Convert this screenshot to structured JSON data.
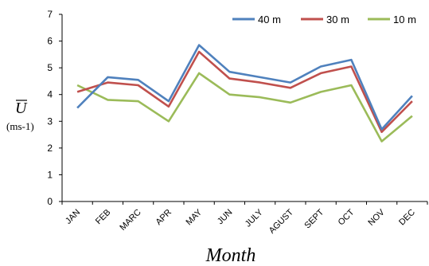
{
  "chart_data": {
    "type": "line",
    "title": "",
    "xlabel": "Month",
    "ylabel": "U",
    "ylabel_unit": "(ms-1)",
    "ylim": [
      0,
      7
    ],
    "yticks": [
      0,
      1,
      2,
      3,
      4,
      5,
      6,
      7
    ],
    "grid": false,
    "legend_position": "top-right",
    "categories": [
      "JAN",
      "FEB",
      "MARC",
      "APR",
      "MAY",
      "JUN",
      "JULY",
      "AGUST",
      "SEPT",
      "OCT",
      "NOV",
      "DEC"
    ],
    "series": [
      {
        "name": "40 m",
        "color": "#4f81bd",
        "values": [
          3.5,
          4.65,
          4.55,
          3.75,
          5.85,
          4.85,
          4.65,
          4.45,
          5.05,
          5.3,
          2.7,
          3.95
        ]
      },
      {
        "name": "30 m",
        "color": "#c0504d",
        "values": [
          4.1,
          4.45,
          4.35,
          3.55,
          5.6,
          4.6,
          4.45,
          4.25,
          4.8,
          5.05,
          2.6,
          3.75
        ]
      },
      {
        "name": "10 m",
        "color": "#9bbb59",
        "values": [
          4.35,
          3.8,
          3.75,
          3.0,
          4.8,
          4.0,
          3.9,
          3.7,
          4.1,
          4.35,
          2.25,
          3.2
        ]
      }
    ]
  }
}
